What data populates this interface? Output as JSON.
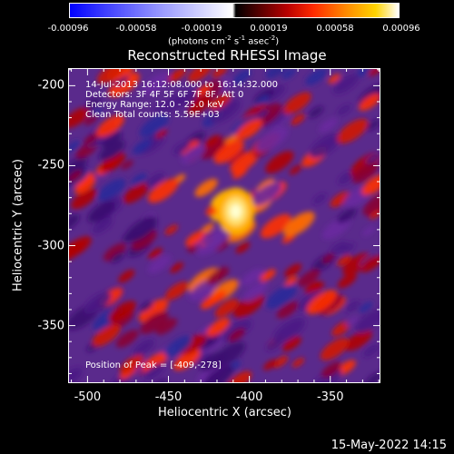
{
  "colorbar": {
    "ticks": [
      "-0.00096",
      "-0.00058",
      "-0.00019",
      "0.00019",
      "0.00058",
      "0.00096"
    ],
    "units_prefix": "(photons cm",
    "units_exp1": "-2",
    "units_mid1": " s",
    "units_exp2": "-1",
    "units_mid2": " asec",
    "units_exp3": "-2",
    "units_suffix": ")"
  },
  "annotations": {
    "time_range": "14-Jul-2013 16:12:08.000 to 16:14:32.000",
    "detectors": "Detectors: 3F 4F 5F 6F 7F 8F, Att 0",
    "energy": "Energy Range: 12.0 - 25.0 keV",
    "clean": "Clean    Total counts: 5.59E+03",
    "peak": "Position of Peak = [-409,-278]"
  },
  "footer": {
    "date": "15-May-2022 14:15"
  },
  "chart_data": {
    "type": "heatmap",
    "title": "Reconstructed RHESSI Image",
    "xlabel": "Heliocentric X (arcsec)",
    "ylabel": "Heliocentric Y (arcsec)",
    "xlim": [
      -512,
      -319
    ],
    "ylim": [
      -386,
      -189
    ],
    "xticks": [
      -500,
      -450,
      -400,
      -350
    ],
    "yticks": [
      -200,
      -250,
      -300,
      -350
    ],
    "xtick_labels": [
      "-500",
      "-450",
      "-400",
      "-350"
    ],
    "ytick_labels": [
      "-200",
      "-250",
      "-300",
      "-350"
    ],
    "colorbar_range": [
      -0.00096,
      0.00096
    ],
    "peak": {
      "x": -409,
      "y": -278,
      "value": 0.00096
    }
  }
}
